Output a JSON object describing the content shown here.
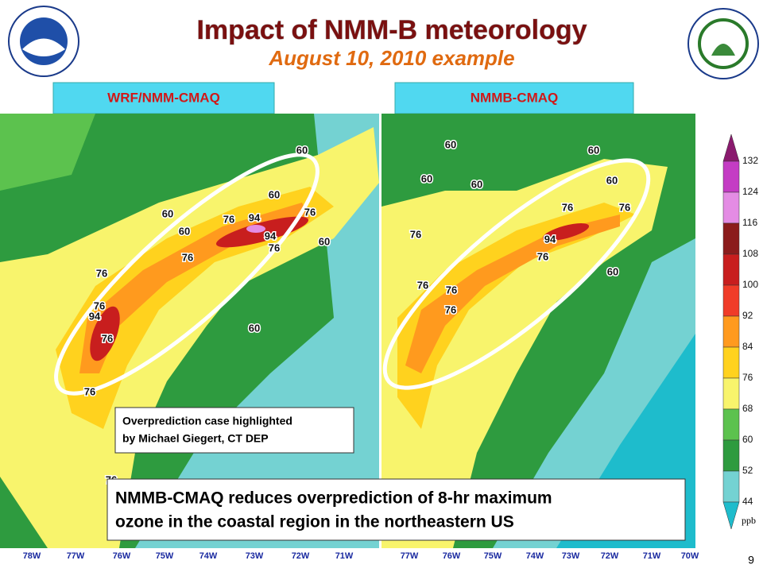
{
  "header": {
    "title": "Impact of NMM-B meteorology",
    "subtitle": "August 10, 2010 example"
  },
  "panels": [
    {
      "label": "WRF/NMM-CMAQ",
      "contour_labels": [
        "76",
        "94",
        "60",
        "94",
        "76",
        "76",
        "60",
        "60",
        "76",
        "76",
        "76",
        "94",
        "76",
        "60",
        "60",
        "76",
        "76",
        "60"
      ],
      "longitudes": [
        "78W",
        "77W",
        "76W",
        "75W",
        "74W",
        "73W",
        "72W",
        "71W"
      ]
    },
    {
      "label": "NMMB-CMAQ",
      "contour_labels": [
        "60",
        "60",
        "60",
        "60",
        "60",
        "76",
        "76",
        "94",
        "76",
        "60",
        "76",
        "76",
        "76",
        "76"
      ],
      "longitudes": [
        "77W",
        "76W",
        "75W",
        "74W",
        "73W",
        "72W",
        "71W",
        "70W"
      ]
    }
  ],
  "colorbar": {
    "labels": [
      "132",
      "124",
      "116",
      "108",
      "100",
      "92",
      "84",
      "76",
      "68",
      "60",
      "52",
      "44"
    ],
    "unit": "ppb",
    "colors": [
      "#8a1a6e",
      "#c43cc4",
      "#e48ce4",
      "#8b1c1c",
      "#c81e1e",
      "#f03c28",
      "#ff9a1e",
      "#ffd21e",
      "#f8f46c",
      "#5cc24e",
      "#2e9b3f",
      "#74d2d2",
      "#1ebccc"
    ]
  },
  "notes": {
    "highlight": [
      "Overprediction case highlighted",
      "by Michael Giegert, CT DEP"
    ],
    "conclusion": [
      "NMMB-CMAQ reduces overprediction of 8-hr maximum",
      "ozone in the coastal region in the northeastern US"
    ]
  },
  "page_number": "9"
}
